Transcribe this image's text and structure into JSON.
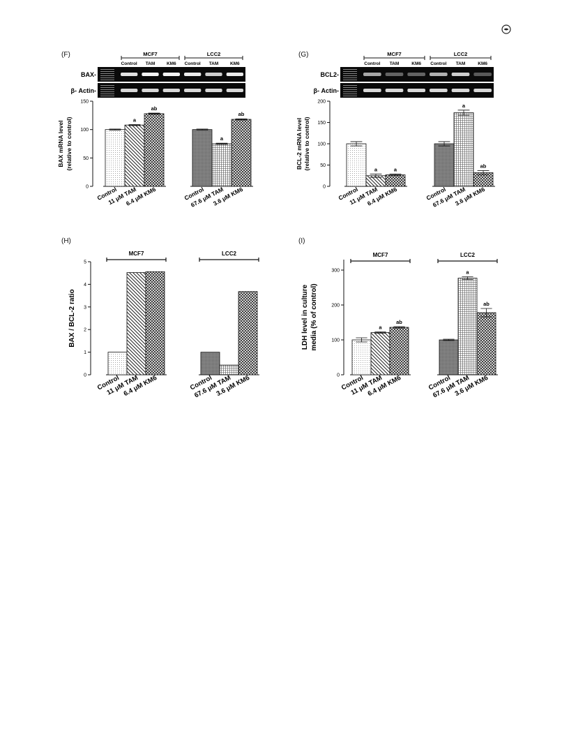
{
  "panels": {
    "F": {
      "label": "(F)"
    },
    "G": {
      "label": "(G)"
    },
    "H": {
      "label": "(H)"
    },
    "I": {
      "label": "(I)"
    }
  },
  "corner_icon": "publisher-logo-icon",
  "chart_data": [
    {
      "id": "F",
      "type": "bar",
      "title": "",
      "ylabel": "BAX mRNA  level\n(relative to control)",
      "ylim": [
        0,
        150
      ],
      "yticks": [
        0,
        50,
        100,
        150
      ],
      "groups": [
        {
          "name": "MCF7",
          "categories": [
            "Control",
            "11 μM TAM",
            "6.4 μM KM6"
          ],
          "values": [
            100,
            108,
            128
          ],
          "errors": [
            1,
            1,
            1
          ],
          "annotations": [
            "",
            "a",
            "ab"
          ],
          "patterns": [
            "dots",
            "diag",
            "cross"
          ]
        },
        {
          "name": "LCC2",
          "categories": [
            "Control",
            "67.6 μM TAM",
            "3.6 μM KM6"
          ],
          "values": [
            100,
            75,
            118
          ],
          "errors": [
            1,
            1,
            1
          ],
          "annotations": [
            "",
            "a",
            "ab"
          ],
          "patterns": [
            "dense",
            "hgrid",
            "cross"
          ]
        }
      ],
      "gel": {
        "header_labels": [
          "Control",
          "TAM",
          "KM6",
          "Control",
          "TAM",
          "KM6"
        ],
        "group_labels": [
          "MCF7",
          "LCC2"
        ],
        "rows": [
          {
            "name": "BAX-",
            "intensity": [
              0.85,
              0.95,
              0.95,
              0.9,
              0.75,
              0.9
            ]
          },
          {
            "name": "β- Actin-",
            "intensity": [
              0.8,
              0.8,
              0.8,
              0.8,
              0.8,
              0.8
            ]
          }
        ]
      }
    },
    {
      "id": "G",
      "type": "bar",
      "title": "",
      "ylabel": "BCL-2 mRNA level\n(relative to control)",
      "ylim": [
        0,
        200
      ],
      "yticks": [
        0,
        50,
        100,
        150,
        200
      ],
      "groups": [
        {
          "name": "MCF7",
          "categories": [
            "Control",
            "11 μM TAM",
            "6.4 μM KM6"
          ],
          "values": [
            100,
            25,
            27
          ],
          "errors": [
            5,
            4,
            2
          ],
          "annotations": [
            "",
            "a",
            "a"
          ],
          "patterns": [
            "dots",
            "diag",
            "cross"
          ]
        },
        {
          "name": "LCC2",
          "categories": [
            "Control",
            "67.6 μM TAM",
            "3.6 μM KM6"
          ],
          "values": [
            100,
            173,
            32
          ],
          "errors": [
            5,
            6,
            5
          ],
          "annotations": [
            "",
            "a",
            "ab"
          ],
          "patterns": [
            "dense",
            "hgrid",
            "cross"
          ]
        }
      ],
      "gel": {
        "header_labels": [
          "Control",
          "TAM",
          "KM6",
          "Control",
          "TAM",
          "KM6"
        ],
        "group_labels": [
          "MCF7",
          "LCC2"
        ],
        "rows": [
          {
            "name": "BCL2-",
            "intensity": [
              0.55,
              0.2,
              0.2,
              0.6,
              0.75,
              0.15
            ]
          },
          {
            "name": "β- Actin-",
            "intensity": [
              0.8,
              0.8,
              0.8,
              0.8,
              0.8,
              0.8
            ]
          }
        ]
      }
    },
    {
      "id": "H",
      "type": "bar",
      "title": "",
      "ylabel": "BAX / BCL-2 ratio",
      "ylim": [
        0,
        5
      ],
      "yticks": [
        0,
        1,
        2,
        3,
        4,
        5
      ],
      "groups": [
        {
          "name": "MCF7",
          "categories": [
            "Control",
            "11 μM TAM",
            "6.4 μM KM6"
          ],
          "values": [
            1.0,
            4.52,
            4.56
          ],
          "errors": [
            0,
            0,
            0
          ],
          "annotations": [
            "",
            "",
            ""
          ],
          "patterns": [
            "dots",
            "diag",
            "cross"
          ]
        },
        {
          "name": "LCC2",
          "categories": [
            "Control",
            "67.6 μM TAM",
            "3.6 μM KM6"
          ],
          "values": [
            1.0,
            0.43,
            3.68
          ],
          "errors": [
            0,
            0,
            0
          ],
          "annotations": [
            "",
            "",
            ""
          ],
          "patterns": [
            "dense",
            "hgrid",
            "cross"
          ]
        }
      ]
    },
    {
      "id": "I",
      "type": "bar",
      "title": "",
      "ylabel": "LDH level  in culture\nmedia (% of  control)",
      "ylim": [
        0,
        330
      ],
      "yticks": [
        0,
        100,
        200,
        300
      ],
      "groups": [
        {
          "name": "MCF7",
          "categories": [
            "Control",
            "11 μM TAM",
            "6.4 μM KM6"
          ],
          "values": [
            100,
            121,
            136
          ],
          "errors": [
            6,
            2,
            2
          ],
          "annotations": [
            "",
            "a",
            "ab"
          ],
          "patterns": [
            "dots",
            "diag",
            "cross"
          ]
        },
        {
          "name": "LCC2",
          "categories": [
            "Control",
            "67.6 μM TAM",
            "3.6 μM KM6"
          ],
          "values": [
            100,
            277,
            178
          ],
          "errors": [
            2,
            4,
            12
          ],
          "annotations": [
            "",
            "a",
            "ab"
          ],
          "patterns": [
            "dense",
            "hgrid",
            "cross"
          ]
        }
      ]
    }
  ]
}
